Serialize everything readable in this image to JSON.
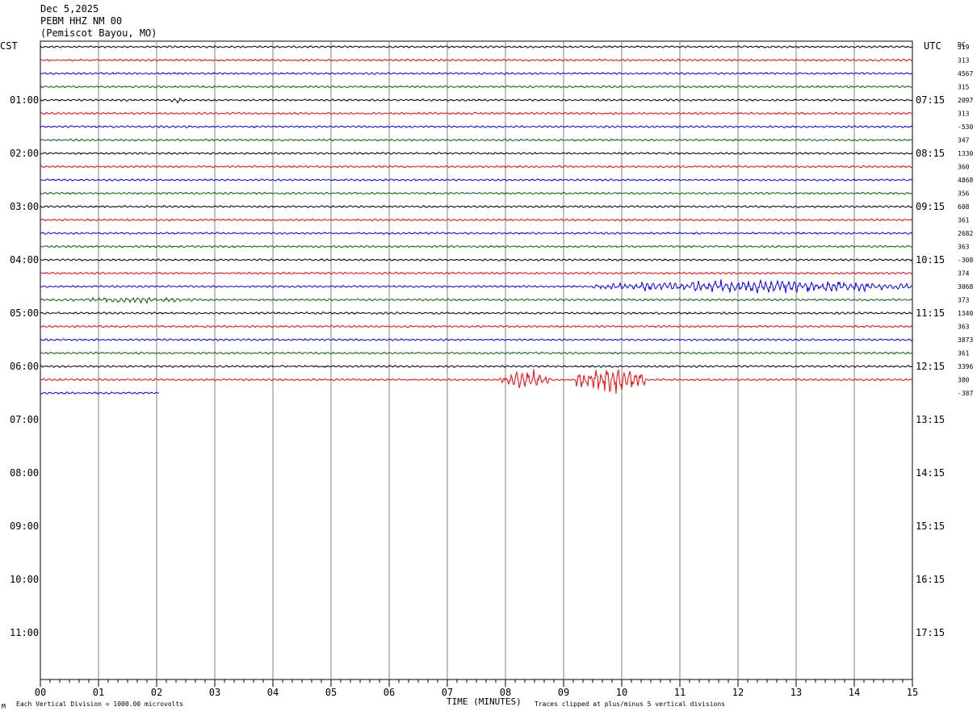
{
  "header": {
    "date": "Dec 5,2025",
    "station": "PEBM HHZ NM 00",
    "location": "(Pemiscot Bayou, MO)"
  },
  "chart_data": {
    "type": "line",
    "left_zone_label": "CST",
    "right_zone_label": "UTC",
    "dc_label": "DC",
    "xlabel": "TIME (MINUTES)",
    "x_ticks": [
      "00",
      "01",
      "02",
      "03",
      "04",
      "05",
      "06",
      "07",
      "08",
      "09",
      "10",
      "11",
      "12",
      "13",
      "14",
      "15"
    ],
    "xlim": [
      0,
      15
    ],
    "left_hour_labels": [
      "01:00",
      "02:00",
      "03:00",
      "04:00",
      "05:00",
      "06:00",
      "07:00",
      "08:00",
      "09:00",
      "10:00",
      "11:00"
    ],
    "right_hour_labels": [
      "07:15",
      "08:15",
      "09:15",
      "10:15",
      "11:15",
      "12:15",
      "13:15",
      "14:15",
      "15:15",
      "16:15",
      "17:15"
    ],
    "trace_colors": [
      "#000000",
      "#ff0000",
      "#0000ff",
      "#006400"
    ],
    "dc_offsets": [
      "319",
      "313",
      "4567",
      "315",
      "2097",
      "313",
      "-530",
      "347",
      "1330",
      "360",
      "4868",
      "356",
      "608",
      "361",
      "2682",
      "363",
      "-308",
      "374",
      "3068",
      "373",
      "1340",
      "363",
      "3873",
      "361",
      "3396",
      "380",
      "-387"
    ],
    "events": [
      {
        "trace": 4,
        "start_min": 2.2,
        "end_min": 2.5,
        "amplitude": 3
      },
      {
        "trace": 18,
        "start_min": 9.5,
        "end_min": 15.0,
        "amplitude": 8
      },
      {
        "trace": 19,
        "start_min": 0.0,
        "end_min": 3.0,
        "amplitude": 3
      },
      {
        "trace": 25,
        "start_min": 7.9,
        "end_min": 8.8,
        "amplitude": 12
      },
      {
        "trace": 25,
        "start_min": 9.2,
        "end_min": 10.4,
        "amplitude": 16
      }
    ],
    "last_trace_end_min": 2.05,
    "footer_left": "Each Vertical Division = 1000.00 microvolts",
    "footer_right": "Traces clipped at plus/minus 5 vertical divisions",
    "corner_mark": "M"
  }
}
